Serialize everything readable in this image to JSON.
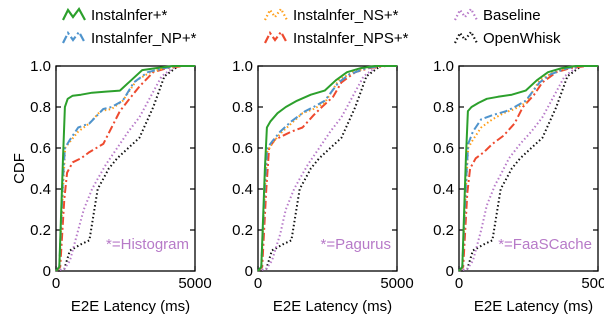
{
  "legend": {
    "entries": [
      {
        "label": "Instalnfer+*",
        "color": "#2ca02c",
        "dash": "solid"
      },
      {
        "label": "Instalnfer_NS+*",
        "color": "#ff9f1a",
        "dash": "dotted"
      },
      {
        "label": "Baseline",
        "color": "#b77ac8",
        "dash": "dotted"
      },
      {
        "label": "Instalnfer_NP+*",
        "color": "#4f94cd",
        "dash": "dashdot"
      },
      {
        "label": "Instalnfer_NPS+*",
        "color": "#ee4a2f",
        "dash": "dashdot"
      },
      {
        "label": "OpenWhisk",
        "color": "#111111",
        "dash": "dotted"
      }
    ]
  },
  "chart_data": [
    {
      "type": "line",
      "ylabel": "CDF",
      "xlabel": "E2E Latency (ms)",
      "xlim": [
        0,
        5000
      ],
      "ylim": [
        0,
        1.0
      ],
      "x_ticks": [
        0,
        5000
      ],
      "y_ticks": [
        "0",
        "0.2",
        "0.4",
        "0.6",
        "0.8",
        "1.0"
      ],
      "annotation": "*=Histogram",
      "series": [
        {
          "name": "Instalnfer+*",
          "x": [
            0,
            120,
            250,
            320,
            420,
            600,
            900,
            1300,
            1800,
            2300,
            2700,
            3100,
            3600,
            4200,
            5000
          ],
          "y": [
            0,
            0.02,
            0.55,
            0.8,
            0.84,
            0.855,
            0.86,
            0.87,
            0.875,
            0.88,
            0.93,
            0.98,
            0.99,
            1.0,
            1.0
          ]
        },
        {
          "name": "Instalnfer_NP+*",
          "x": [
            0,
            120,
            250,
            320,
            500,
            800,
            1200,
            1700,
            2000,
            2400,
            2800,
            3300,
            3900,
            4400,
            5000
          ],
          "y": [
            0,
            0.02,
            0.45,
            0.6,
            0.64,
            0.7,
            0.72,
            0.79,
            0.8,
            0.83,
            0.92,
            0.97,
            0.99,
            1.0,
            1.0
          ]
        },
        {
          "name": "Instalnfer_NS+*",
          "x": [
            0,
            120,
            250,
            330,
            500,
            800,
            1200,
            1600,
            2000,
            2400,
            2900,
            3400,
            3900,
            4400,
            5000
          ],
          "y": [
            0,
            0.02,
            0.4,
            0.6,
            0.63,
            0.68,
            0.72,
            0.78,
            0.79,
            0.83,
            0.93,
            0.97,
            0.99,
            1.0,
            1.0
          ]
        },
        {
          "name": "Instalnfer_NPS+*",
          "x": [
            0,
            150,
            300,
            400,
            600,
            900,
            1200,
            1700,
            2000,
            2300,
            2700,
            3000,
            3500,
            4000,
            4600,
            5000
          ],
          "y": [
            0,
            0.02,
            0.35,
            0.48,
            0.53,
            0.55,
            0.58,
            0.62,
            0.7,
            0.78,
            0.85,
            0.9,
            0.97,
            0.99,
            1.0,
            1.0
          ]
        },
        {
          "name": "Baseline",
          "x": [
            0,
            300,
            500,
            800,
            1000,
            1300,
            1500,
            1800,
            2200,
            2600,
            3000,
            3400,
            3800,
            4300,
            5000
          ],
          "y": [
            0,
            0.01,
            0.05,
            0.2,
            0.3,
            0.4,
            0.45,
            0.52,
            0.6,
            0.68,
            0.75,
            0.85,
            0.95,
            1.0,
            1.0
          ]
        },
        {
          "name": "OpenWhisk",
          "x": [
            0,
            300,
            500,
            900,
            1200,
            1500,
            1700,
            1900,
            2200,
            2600,
            3000,
            3500,
            3900,
            4400,
            5000
          ],
          "y": [
            0,
            0.01,
            0.1,
            0.13,
            0.15,
            0.4,
            0.45,
            0.5,
            0.55,
            0.6,
            0.65,
            0.8,
            0.95,
            1.0,
            1.0
          ]
        }
      ]
    },
    {
      "type": "line",
      "xlabel": "E2E Latency (ms)",
      "xlim": [
        0,
        5000
      ],
      "ylim": [
        0,
        1.0
      ],
      "x_ticks": [
        0,
        5000
      ],
      "y_ticks": [
        "0",
        "0.2",
        "0.4",
        "0.6",
        "0.8",
        "1.0"
      ],
      "annotation": "*=Pagurus",
      "series": [
        {
          "name": "Instalnfer+*",
          "x": [
            0,
            120,
            250,
            320,
            450,
            700,
            1000,
            1400,
            1900,
            2400,
            2800,
            3200,
            3700,
            4200,
            5000
          ],
          "y": [
            0,
            0.02,
            0.5,
            0.7,
            0.73,
            0.77,
            0.8,
            0.83,
            0.86,
            0.88,
            0.93,
            0.97,
            0.99,
            1.0,
            1.0
          ]
        },
        {
          "name": "Instalnfer_NP+*",
          "x": [
            0,
            120,
            250,
            330,
            500,
            800,
            1200,
            1700,
            2000,
            2400,
            2900,
            3300,
            3900,
            4400,
            5000
          ],
          "y": [
            0,
            0.02,
            0.42,
            0.6,
            0.63,
            0.68,
            0.73,
            0.78,
            0.8,
            0.83,
            0.92,
            0.96,
            0.99,
            1.0,
            1.0
          ]
        },
        {
          "name": "Instalnfer_NS+*",
          "x": [
            0,
            120,
            250,
            330,
            500,
            800,
            1200,
            1600,
            2000,
            2400,
            2900,
            3400,
            3900,
            4400,
            5000
          ],
          "y": [
            0,
            0.02,
            0.4,
            0.58,
            0.62,
            0.67,
            0.72,
            0.77,
            0.79,
            0.82,
            0.93,
            0.97,
            0.99,
            1.0,
            1.0
          ]
        },
        {
          "name": "Instalnfer_NPS+*",
          "x": [
            0,
            150,
            300,
            400,
            600,
            900,
            1200,
            1600,
            2000,
            2300,
            2700,
            3000,
            3500,
            4000,
            4600,
            5000
          ],
          "y": [
            0,
            0.02,
            0.4,
            0.6,
            0.64,
            0.66,
            0.68,
            0.7,
            0.76,
            0.8,
            0.85,
            0.92,
            0.97,
            0.99,
            1.0,
            1.0
          ]
        },
        {
          "name": "Baseline",
          "x": [
            0,
            300,
            500,
            800,
            1000,
            1300,
            1500,
            1800,
            2200,
            2600,
            3000,
            3400,
            3800,
            4300,
            5000
          ],
          "y": [
            0,
            0.01,
            0.05,
            0.18,
            0.3,
            0.4,
            0.45,
            0.52,
            0.6,
            0.68,
            0.75,
            0.85,
            0.95,
            1.0,
            1.0
          ]
        },
        {
          "name": "OpenWhisk",
          "x": [
            0,
            300,
            500,
            900,
            1200,
            1500,
            1700,
            1900,
            2200,
            2600,
            3000,
            3500,
            3900,
            4400,
            5000
          ],
          "y": [
            0,
            0.01,
            0.1,
            0.13,
            0.15,
            0.4,
            0.45,
            0.5,
            0.55,
            0.6,
            0.65,
            0.8,
            0.95,
            1.0,
            1.0
          ]
        }
      ]
    },
    {
      "type": "line",
      "xlabel": "E2E Latency (ms)",
      "xlim": [
        0,
        5000
      ],
      "ylim": [
        0,
        1.0
      ],
      "x_ticks": [
        0,
        5000
      ],
      "y_ticks": [
        "0",
        "0.2",
        "0.4",
        "0.6",
        "0.8",
        "1.0"
      ],
      "annotation": "*=FaaSCache",
      "series": [
        {
          "name": "Instalnfer+*",
          "x": [
            0,
            120,
            250,
            320,
            450,
            700,
            1000,
            1400,
            1900,
            2400,
            2800,
            3200,
            3700,
            4200,
            5000
          ],
          "y": [
            0,
            0.02,
            0.55,
            0.78,
            0.8,
            0.82,
            0.84,
            0.85,
            0.86,
            0.88,
            0.93,
            0.97,
            0.99,
            1.0,
            1.0
          ]
        },
        {
          "name": "Instalnfer_NP+*",
          "x": [
            0,
            120,
            250,
            330,
            500,
            800,
            1200,
            1700,
            2000,
            2400,
            2900,
            3300,
            3900,
            4400,
            5000
          ],
          "y": [
            0,
            0.02,
            0.42,
            0.62,
            0.68,
            0.74,
            0.76,
            0.78,
            0.8,
            0.83,
            0.92,
            0.96,
            0.99,
            1.0,
            1.0
          ]
        },
        {
          "name": "Instalnfer_NS+*",
          "x": [
            0,
            120,
            250,
            330,
            500,
            800,
            1200,
            1600,
            2000,
            2400,
            2900,
            3400,
            3900,
            4400,
            5000
          ],
          "y": [
            0,
            0.02,
            0.4,
            0.6,
            0.64,
            0.7,
            0.74,
            0.77,
            0.79,
            0.82,
            0.93,
            0.97,
            0.99,
            1.0,
            1.0
          ]
        },
        {
          "name": "Instalnfer_NPS+*",
          "x": [
            0,
            150,
            300,
            400,
            600,
            900,
            1200,
            1600,
            2000,
            2300,
            2700,
            3000,
            3500,
            4000,
            4600,
            5000
          ],
          "y": [
            0,
            0.02,
            0.38,
            0.5,
            0.55,
            0.58,
            0.62,
            0.66,
            0.72,
            0.8,
            0.86,
            0.92,
            0.97,
            0.99,
            1.0,
            1.0
          ]
        },
        {
          "name": "Baseline",
          "x": [
            0,
            300,
            500,
            800,
            1000,
            1300,
            1500,
            1800,
            2200,
            2600,
            3000,
            3400,
            3800,
            4300,
            5000
          ],
          "y": [
            0,
            0.01,
            0.05,
            0.2,
            0.32,
            0.42,
            0.47,
            0.55,
            0.62,
            0.68,
            0.75,
            0.85,
            0.95,
            1.0,
            1.0
          ]
        },
        {
          "name": "OpenWhisk",
          "x": [
            0,
            300,
            500,
            900,
            1200,
            1500,
            1700,
            1900,
            2200,
            2600,
            3000,
            3500,
            3900,
            4400,
            5000
          ],
          "y": [
            0,
            0.01,
            0.1,
            0.13,
            0.15,
            0.4,
            0.45,
            0.5,
            0.55,
            0.6,
            0.65,
            0.8,
            0.95,
            1.0,
            1.0
          ]
        }
      ]
    }
  ]
}
